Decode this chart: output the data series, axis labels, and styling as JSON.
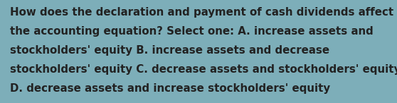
{
  "background_color": "#7DAEB9",
  "lines": [
    "How does the declaration and payment of cash dividends affect",
    "the accounting equation? Select one: A. increase assets and",
    "stockholders' equity B. increase assets and decrease",
    "stockholders' equity C. decrease assets and stockholders' equity",
    "D. decrease assets and increase stockholders' equity"
  ],
  "text_color": "#222222",
  "font_size": 10.8,
  "fig_width": 5.58,
  "fig_height": 1.46,
  "dpi": 100
}
